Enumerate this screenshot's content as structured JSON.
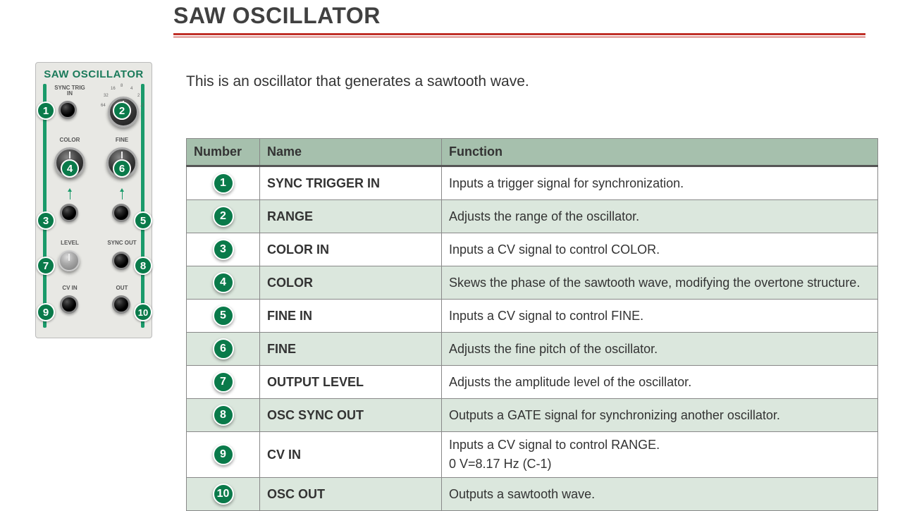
{
  "page": {
    "title": "SAW OSCILLATOR",
    "description": "This is an oscillator that generates a sawtooth wave.",
    "accent_color": "#c03028",
    "badge_color": "#0a7a4a",
    "row_even_bg": "#dbe7dd",
    "header_bg": "#a6c0ad"
  },
  "module": {
    "title": "SAW OSCILLATOR",
    "labels": {
      "sync_trig": "SYNC TRIG\nIN",
      "color": "COLOR",
      "fine": "FINE",
      "level": "LEVEL",
      "sync_out": "SYNC OUT",
      "cv_in": "CV IN",
      "out": "OUT"
    },
    "range_ticks": [
      "64",
      "32",
      "16",
      "8",
      "4",
      "2",
      ".2"
    ]
  },
  "badges": {
    "b1": "1",
    "b2": "2",
    "b3": "3",
    "b4": "4",
    "b5": "5",
    "b6": "6",
    "b7": "7",
    "b8": "8",
    "b9": "9",
    "b10": "10"
  },
  "table": {
    "headers": {
      "number": "Number",
      "name": "Name",
      "function": "Function"
    },
    "rows": [
      {
        "num": "1",
        "name": "SYNC TRIGGER IN",
        "func": "Inputs a trigger signal for synchronization."
      },
      {
        "num": "2",
        "name": "RANGE",
        "func": "Adjusts the range of the oscillator."
      },
      {
        "num": "3",
        "name": "COLOR IN",
        "func": "Inputs a CV signal to control COLOR."
      },
      {
        "num": "4",
        "name": "COLOR",
        "func": "Skews the phase of the sawtooth wave, modifying the overtone structure."
      },
      {
        "num": "5",
        "name": "FINE IN",
        "func": "Inputs a CV signal to control FINE."
      },
      {
        "num": "6",
        "name": "FINE",
        "func": "Adjusts the fine pitch of the oscillator."
      },
      {
        "num": "7",
        "name": "OUTPUT LEVEL",
        "func": "Adjusts the amplitude level of the oscillator."
      },
      {
        "num": "8",
        "name": "OSC SYNC OUT",
        "func": "Outputs a GATE signal for synchronizing another oscillator."
      },
      {
        "num": "9",
        "name": "CV IN",
        "func": "Inputs a CV signal to control RANGE.",
        "func2": "0 V=8.17 Hz (C-1)"
      },
      {
        "num": "10",
        "name": "OSC OUT",
        "func": "Outputs a sawtooth wave."
      }
    ]
  }
}
